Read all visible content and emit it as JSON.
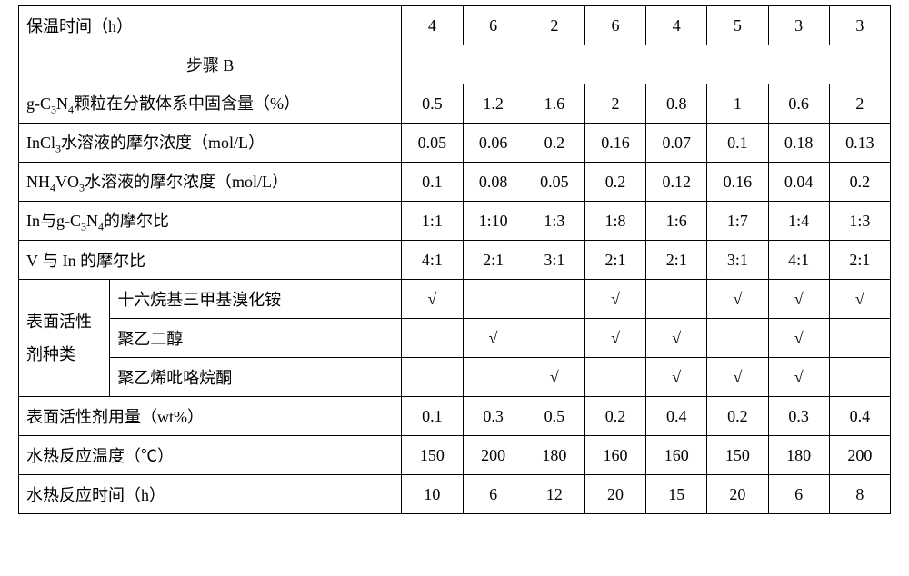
{
  "colors": {
    "border": "#000000",
    "bg": "#ffffff",
    "text": "#000000"
  },
  "font": {
    "family": "SimSun",
    "size_pt": 14
  },
  "check": "√",
  "table": {
    "type": "table",
    "value_col_count": 8,
    "rows": {
      "r0": {
        "label_html": "保温时间（h）",
        "vals": [
          "4",
          "6",
          "2",
          "6",
          "4",
          "5",
          "3",
          "3"
        ]
      },
      "r1": {
        "label": "步骤 B"
      },
      "r2": {
        "label_html": "g-C<sub>3</sub>N<sub>4</sub>颗粒在分散体系中固含量（%）",
        "vals": [
          "0.5",
          "1.2",
          "1.6",
          "2",
          "0.8",
          "1",
          "0.6",
          "2"
        ]
      },
      "r3": {
        "label_html": "InCl<sub>3</sub>水溶液的摩尔浓度（mol/L）",
        "vals": [
          "0.05",
          "0.06",
          "0.2",
          "0.16",
          "0.07",
          "0.1",
          "0.18",
          "0.13"
        ]
      },
      "r4": {
        "label_html": "NH<sub>4</sub>VO<sub>3</sub>水溶液的摩尔浓度（mol/L）",
        "vals": [
          "0.1",
          "0.08",
          "0.05",
          "0.2",
          "0.12",
          "0.16",
          "0.04",
          "0.2"
        ]
      },
      "r5": {
        "label_html": "In与g-C<sub>3</sub>N<sub>4</sub>的摩尔比",
        "vals": [
          "1:1",
          "1:10",
          "1:3",
          "1:8",
          "1:6",
          "1:7",
          "1:4",
          "1:3"
        ]
      },
      "r6": {
        "label": "V 与 In 的摩尔比",
        "vals": [
          "4:1",
          "2:1",
          "3:1",
          "2:1",
          "2:1",
          "3:1",
          "4:1",
          "2:1"
        ]
      },
      "surf_group_label": "表面活性剂种类",
      "r7": {
        "sublabel": "十六烷基三甲基溴化铵",
        "vals": [
          "√",
          "",
          "",
          "√",
          "",
          "√",
          "√",
          "√"
        ]
      },
      "r8": {
        "sublabel": "聚乙二醇",
        "vals": [
          "",
          "√",
          "",
          "√",
          "√",
          "",
          "√",
          ""
        ]
      },
      "r9": {
        "sublabel": "聚乙烯吡咯烷酮",
        "vals": [
          "",
          "",
          "√",
          "",
          "√",
          "√",
          "√",
          ""
        ]
      },
      "r10": {
        "label": "表面活性剂用量（wt%）",
        "vals": [
          "0.1",
          "0.3",
          "0.5",
          "0.2",
          "0.4",
          "0.2",
          "0.3",
          "0.4"
        ]
      },
      "r11": {
        "label": "水热反应温度（℃）",
        "vals": [
          "150",
          "200",
          "180",
          "160",
          "160",
          "150",
          "180",
          "200"
        ]
      },
      "r12": {
        "label": "水热反应时间（h）",
        "vals": [
          "10",
          "6",
          "12",
          "20",
          "15",
          "20",
          "6",
          "8"
        ]
      }
    }
  }
}
